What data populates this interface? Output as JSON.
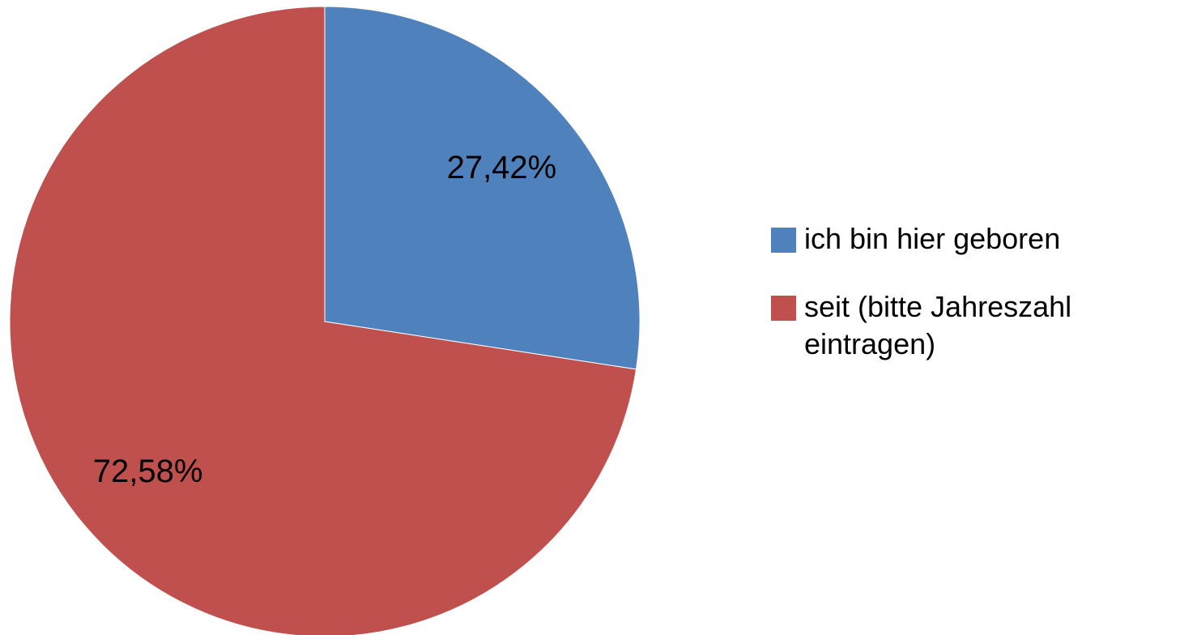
{
  "chart_data": {
    "type": "pie",
    "categories": [
      "ich bin hier geboren",
      "seit (bitte Jahreszahl eintragen)"
    ],
    "values": [
      27.42,
      72.58
    ],
    "value_labels": [
      "27,42%",
      "72,58%"
    ],
    "colors": [
      "#4f81bd",
      "#c0504d"
    ],
    "legend": "right"
  }
}
